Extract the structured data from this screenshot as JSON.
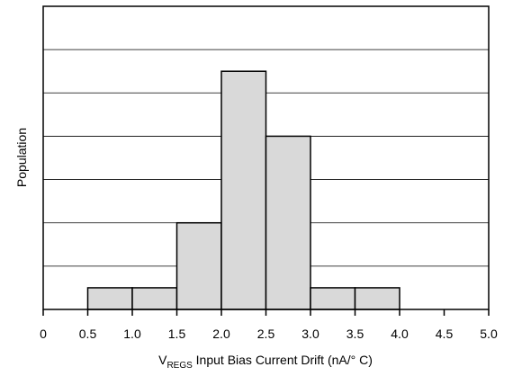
{
  "chart_data": {
    "type": "bar",
    "bins": [
      {
        "x0": 0.5,
        "x1": 1.0,
        "value": 0.5
      },
      {
        "x0": 1.0,
        "x1": 1.5,
        "value": 0.5
      },
      {
        "x0": 1.5,
        "x1": 2.0,
        "value": 2.0
      },
      {
        "x0": 2.0,
        "x1": 2.5,
        "value": 5.5
      },
      {
        "x0": 2.5,
        "x1": 3.0,
        "value": 4.0
      },
      {
        "x0": 3.0,
        "x1": 3.5,
        "value": 0.5
      },
      {
        "x0": 3.5,
        "x1": 4.0,
        "value": 0.5
      }
    ],
    "xticks": [
      "0",
      "0.5",
      "1.0",
      "1.5",
      "2.0",
      "2.5",
      "3.0",
      "3.5",
      "4.0",
      "4.5",
      "5.0"
    ],
    "xlim": [
      0,
      5
    ],
    "ylim": [
      0,
      7
    ],
    "ygrid": [
      1,
      2,
      3,
      4,
      5,
      6
    ],
    "xlabel_main": "V",
    "xlabel_sub": "REGS",
    "xlabel_rest": " Input Bias Current Drift (nA/° C)",
    "ylabel": "Population",
    "bar_color": "#d9d9d9",
    "grid": true,
    "yticks_labeled": false
  }
}
